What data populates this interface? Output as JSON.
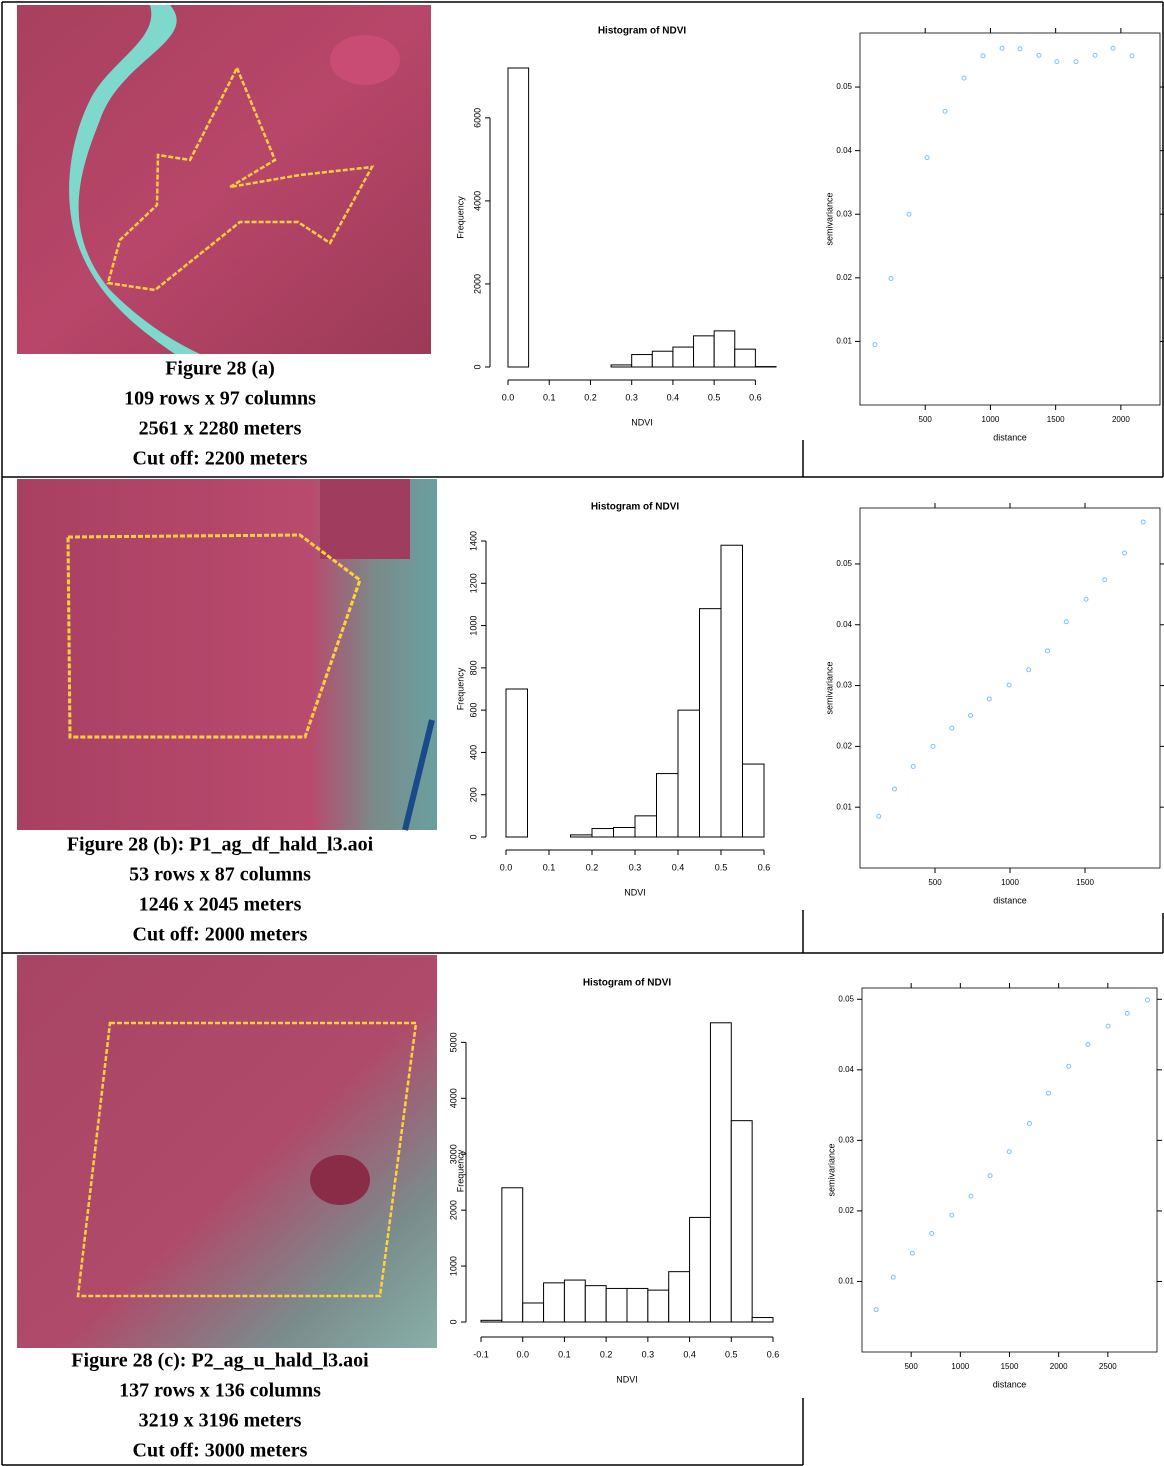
{
  "rows": [
    {
      "caption": [
        "Figure 28 (a)",
        "109 rows x 97 columns",
        "2561 x 2280 meters",
        "Cut off: 2200 meters"
      ]
    },
    {
      "caption": [
        "Figure 28 (b): P1_ag_df_hald_l3.aoi",
        "53 rows x 87 columns",
        "1246 x 2045 meters",
        "Cut off: 2000 meters"
      ]
    },
    {
      "caption": [
        "Figure 28 (c): P2_ag_u_hald_l3.aoi",
        "137 rows x 136 columns",
        "3219 x 3196 meters",
        "Cut off: 3000 meters"
      ]
    }
  ],
  "chart_data": [
    {
      "type": "histogram",
      "title": "Histogram of NDVI",
      "xlabel": "NDVI",
      "ylabel": "Frequency",
      "color": "#ffffff",
      "bins": [
        0,
        0.05,
        0.1,
        0.15,
        0.2,
        0.25,
        0.3,
        0.35,
        0.4,
        0.45,
        0.5,
        0.55,
        0.6,
        0.65
      ],
      "values": [
        7200,
        0,
        0,
        0,
        0,
        50,
        300,
        380,
        480,
        750,
        870,
        430,
        10
      ],
      "xlim": [
        0,
        0.65
      ],
      "ylim": [
        0,
        7200
      ],
      "xticks": [
        {
          "value": 0,
          "label": "0.0"
        },
        0.1,
        0.2,
        0.3,
        0.4,
        0.5,
        0.6
      ],
      "yticks": [
        0,
        2000,
        4000,
        6000
      ]
    },
    {
      "type": "scatter",
      "xlabel": "distance",
      "ylabel": "semivariance",
      "color": "#7fbfff",
      "x": [
        115,
        238,
        376,
        514,
        652,
        798,
        943,
        1089,
        1227,
        1372,
        1510,
        1656,
        1802,
        1940,
        2085
      ],
      "values": [
        0.0095,
        0.0199,
        0.03,
        0.0389,
        0.0462,
        0.0514,
        0.0549,
        0.0561,
        0.056,
        0.055,
        0.054,
        0.054,
        0.055,
        0.0561,
        0.0549
      ],
      "xlim": [
        0,
        2300
      ],
      "ylim": [
        0,
        0.0585
      ],
      "xticks": [
        500,
        1000,
        1500,
        2000
      ],
      "yticks": [
        0.01,
        0.02,
        0.03,
        0.04,
        0.05
      ]
    },
    {
      "type": "histogram",
      "title": "Histogram of NDVI",
      "xlabel": "NDVI",
      "ylabel": "Frequency",
      "color": "#ffffff",
      "bins": [
        0,
        0.05,
        0.1,
        0.15,
        0.2,
        0.25,
        0.3,
        0.35,
        0.4,
        0.45,
        0.5,
        0.55,
        0.6
      ],
      "values": [
        700,
        0,
        0,
        10,
        40,
        45,
        100,
        300,
        600,
        1080,
        1380,
        345
      ],
      "xlim": [
        0,
        0.6
      ],
      "ylim": [
        0,
        1400
      ],
      "xticks": [
        {
          "value": 0,
          "label": "0.0"
        },
        0.1,
        0.2,
        0.3,
        0.4,
        0.5,
        0.6
      ],
      "yticks": [
        0,
        200,
        400,
        600,
        800,
        1000,
        1200,
        1400
      ]
    },
    {
      "type": "scatter",
      "xlabel": "distance",
      "ylabel": "semivariance",
      "color": "#7fbfff",
      "x": [
        125,
        230,
        355,
        487,
        612,
        737,
        862,
        994,
        1125,
        1250,
        1375,
        1507,
        1632,
        1763,
        1888
      ],
      "values": [
        0.0085,
        0.013,
        0.0167,
        0.02,
        0.023,
        0.0251,
        0.0278,
        0.0301,
        0.0326,
        0.0357,
        0.0405,
        0.0442,
        0.0474,
        0.0518,
        0.0569
      ],
      "xlim": [
        0,
        2000
      ],
      "ylim": [
        0,
        0.0592
      ],
      "xticks": [
        500,
        1000,
        1500
      ],
      "yticks": [
        0.01,
        0.02,
        0.03,
        0.04,
        0.05
      ]
    },
    {
      "type": "histogram",
      "title": "Histogram of NDVI",
      "xlabel": "NDVI",
      "ylabel": "Frequency",
      "color": "#ffffff",
      "bins": [
        -0.1,
        -0.05,
        0,
        0.05,
        0.1,
        0.15,
        0.2,
        0.25,
        0.3,
        0.35,
        0.4,
        0.45,
        0.5,
        0.55,
        0.6
      ],
      "values": [
        30,
        2400,
        340,
        700,
        750,
        650,
        600,
        600,
        570,
        900,
        1870,
        5350,
        3600,
        80
      ],
      "xlim": [
        -0.1,
        0.6
      ],
      "ylim": [
        0,
        5400
      ],
      "xticks": [
        -0.1,
        {
          "value": 0,
          "label": "0.0"
        },
        0.1,
        0.2,
        0.3,
        0.4,
        0.5,
        0.6
      ],
      "yticks": [
        0,
        1000,
        2000,
        3000,
        4000,
        5000
      ]
    },
    {
      "type": "scatter",
      "xlabel": "distance",
      "ylabel": "semivariance",
      "color": "#7fbfff",
      "x": [
        144,
        318,
        513,
        708,
        913,
        1108,
        1303,
        1497,
        1703,
        1897,
        2103,
        2297,
        2503,
        2697,
        2903
      ],
      "values": [
        0.006,
        0.0106,
        0.014,
        0.0168,
        0.0194,
        0.0221,
        0.025,
        0.0284,
        0.0324,
        0.0367,
        0.0405,
        0.0436,
        0.0462,
        0.048,
        0.0499
      ],
      "xlim": [
        0,
        3000
      ],
      "ylim": [
        0,
        0.0516
      ],
      "xticks": [
        500,
        1000,
        1500,
        2000,
        2500
      ],
      "yticks": [
        0.01,
        0.02,
        0.03,
        0.04,
        0.05
      ]
    }
  ]
}
